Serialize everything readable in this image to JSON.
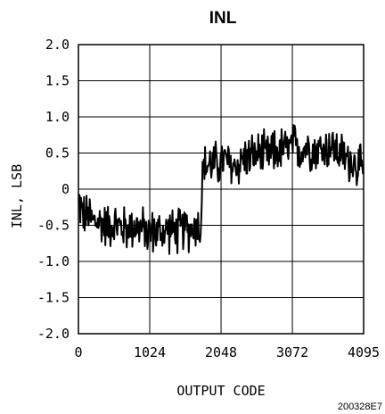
{
  "chart_data": {
    "type": "line",
    "title": "INL",
    "xlabel": "OUTPUT CODE",
    "ylabel": "INL, LSB",
    "xlim": [
      0,
      4095
    ],
    "ylim": [
      -2.0,
      2.0
    ],
    "xticks": [
      0,
      1024,
      2048,
      3072,
      4095
    ],
    "xtick_labels": [
      "0",
      "1024",
      "2048",
      "3072",
      "4095"
    ],
    "yticks": [
      2.0,
      1.5,
      1.0,
      0.5,
      0,
      -0.5,
      -1.0,
      -1.5,
      -2.0
    ],
    "ytick_labels": [
      "2.0",
      "1.5",
      "1.0",
      "0.5",
      "0",
      "-0.5",
      "-1.0",
      "-1.5",
      "-2.0"
    ],
    "grid": true,
    "series": [
      {
        "points": [
          [
            0,
            -0.15
          ],
          [
            50,
            -0.3
          ],
          [
            100,
            -0.4
          ],
          [
            150,
            -0.35
          ],
          [
            200,
            -0.45
          ],
          [
            300,
            -0.45
          ],
          [
            400,
            -0.5
          ],
          [
            500,
            -0.48
          ],
          [
            600,
            -0.52
          ],
          [
            700,
            -0.55
          ],
          [
            800,
            -0.5
          ],
          [
            900,
            -0.55
          ],
          [
            1000,
            -0.6
          ],
          [
            1100,
            -0.58
          ],
          [
            1200,
            -0.6
          ],
          [
            1300,
            -0.55
          ],
          [
            1400,
            -0.6
          ],
          [
            1500,
            -0.55
          ],
          [
            1600,
            -0.55
          ],
          [
            1700,
            -0.5
          ],
          [
            1760,
            -0.55
          ],
          [
            1780,
            0.25
          ],
          [
            1800,
            0.3
          ],
          [
            1900,
            0.35
          ],
          [
            2000,
            0.35
          ],
          [
            2100,
            0.4
          ],
          [
            2200,
            0.3
          ],
          [
            2300,
            0.35
          ],
          [
            2400,
            0.45
          ],
          [
            2500,
            0.45
          ],
          [
            2600,
            0.5
          ],
          [
            2700,
            0.45
          ],
          [
            2800,
            0.5
          ],
          [
            2900,
            0.55
          ],
          [
            3000,
            0.55
          ],
          [
            3100,
            0.6
          ],
          [
            3200,
            0.55
          ],
          [
            3300,
            0.6
          ],
          [
            3400,
            0.55
          ],
          [
            3500,
            0.55
          ],
          [
            3600,
            0.6
          ],
          [
            3700,
            0.55
          ],
          [
            3800,
            0.45
          ],
          [
            3900,
            0.4
          ],
          [
            4000,
            0.35
          ],
          [
            4095,
            0.2
          ]
        ],
        "noise_amplitude_lsb": 0.38,
        "color": "#000000"
      }
    ]
  },
  "figure_id": "200328E7"
}
